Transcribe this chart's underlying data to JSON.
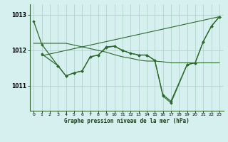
{
  "title": "Graphe pression niveau de la mer (hPa)",
  "bg_color": "#d6f0f0",
  "grid_color": "#b0d4c8",
  "line_color": "#2d6a2d",
  "xlim": [
    -0.5,
    23.5
  ],
  "ylim": [
    1010.3,
    1013.3
  ],
  "yticks": [
    1011,
    1012,
    1013
  ],
  "xticks": [
    0,
    1,
    2,
    3,
    4,
    5,
    6,
    7,
    8,
    9,
    10,
    11,
    12,
    13,
    14,
    15,
    16,
    17,
    18,
    19,
    20,
    21,
    22,
    23
  ],
  "series_no_marker": [
    {
      "x": [
        0,
        1,
        2,
        3,
        4,
        5,
        6,
        7,
        8,
        9,
        10,
        11,
        12,
        13,
        14,
        15,
        16,
        17,
        18,
        19,
        20,
        21,
        22,
        23
      ],
      "y": [
        1012.2,
        1012.2,
        1012.2,
        1012.2,
        1012.2,
        1012.15,
        1012.1,
        1012.05,
        1012.0,
        1011.95,
        1011.88,
        1011.82,
        1011.78,
        1011.73,
        1011.7,
        1011.7,
        1011.68,
        1011.65,
        1011.65,
        1011.65,
        1011.65,
        1011.65,
        1011.65,
        1011.65
      ]
    },
    {
      "x": [
        1,
        23
      ],
      "y": [
        1011.85,
        1012.95
      ]
    }
  ],
  "series_with_marker": [
    {
      "x": [
        0,
        1,
        3,
        4,
        5,
        6,
        7,
        8,
        9,
        10,
        11,
        12,
        13,
        14,
        15,
        16,
        17,
        19,
        20,
        21,
        22,
        23
      ],
      "y": [
        1012.82,
        1012.17,
        1011.57,
        1011.28,
        1011.37,
        1011.42,
        1011.82,
        1011.87,
        1012.1,
        1012.12,
        1012.0,
        1011.92,
        1011.87,
        1011.87,
        1011.72,
        1010.75,
        1010.57,
        1011.6,
        1011.65,
        1012.25,
        1012.68,
        1012.95
      ]
    },
    {
      "x": [
        1,
        3,
        4,
        5,
        6,
        7,
        8,
        9,
        10,
        11,
        12,
        13,
        14,
        15,
        16,
        17,
        19,
        20,
        21,
        22,
        23
      ],
      "y": [
        1011.9,
        1011.57,
        1011.28,
        1011.37,
        1011.42,
        1011.82,
        1011.87,
        1012.08,
        1012.12,
        1012.0,
        1011.92,
        1011.87,
        1011.87,
        1011.72,
        1010.72,
        1010.52,
        1011.6,
        1011.65,
        1012.25,
        1012.68,
        1012.95
      ]
    }
  ]
}
